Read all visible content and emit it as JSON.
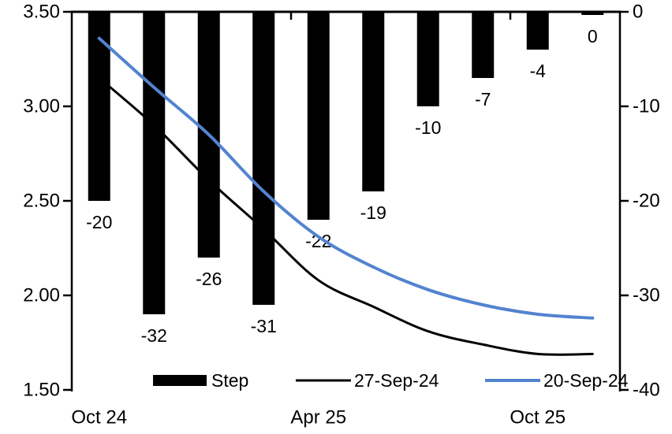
{
  "chart_data": {
    "type": "bar+line combo",
    "n_categories": 10,
    "bars": {
      "name": "Step",
      "axis": "right",
      "color": "#000000",
      "values": [
        -20,
        -32,
        -26,
        -31,
        -22,
        -19,
        -10,
        -7,
        -4,
        0
      ],
      "data_labels": [
        "-20",
        "-32",
        "-26",
        "-31",
        "-22",
        "-19",
        "-10",
        "-7",
        "-4",
        "0"
      ]
    },
    "series": [
      {
        "name": "27-Sep-24",
        "axis": "left",
        "color": "#000000",
        "stroke_width": 3,
        "values": [
          3.15,
          2.9,
          2.61,
          2.35,
          2.08,
          1.94,
          1.81,
          1.74,
          1.69,
          1.69
        ]
      },
      {
        "name": "20-Sep-24",
        "axis": "left",
        "color": "#5383CF",
        "stroke_width": 4,
        "values": [
          3.36,
          3.1,
          2.85,
          2.55,
          2.31,
          2.15,
          2.03,
          1.95,
          1.9,
          1.88
        ]
      }
    ],
    "left_axis": {
      "min": 1.5,
      "max": 3.5,
      "ticks": [
        "3.50",
        "3.00",
        "2.50",
        "2.00",
        "1.50"
      ]
    },
    "right_axis": {
      "min": -40,
      "max": 0,
      "ticks": [
        "0",
        "-10",
        "-20",
        "-30",
        "-40"
      ]
    },
    "x_axis": {
      "labels": [
        "Oct 24",
        "Apr 25",
        "Oct 25"
      ],
      "label_category_index": [
        0,
        4,
        8
      ],
      "group_tick_boundaries": [
        4,
        8
      ]
    },
    "legend": [
      {
        "label": "Step",
        "swatch": "bar",
        "color": "#000000"
      },
      {
        "label": "27-Sep-24",
        "swatch": "line",
        "color": "#000000"
      },
      {
        "label": "20-Sep-24",
        "swatch": "line",
        "color": "#5383CF"
      }
    ],
    "grid": "off",
    "legend_position": "bottom-inside",
    "title": ""
  }
}
